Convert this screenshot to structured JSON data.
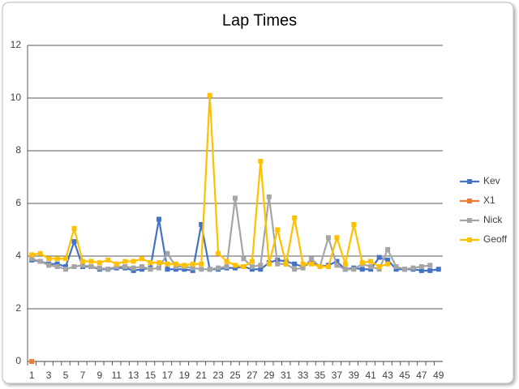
{
  "chart_data": {
    "type": "line",
    "title": "Lap Times",
    "categories": [
      "1",
      null,
      "3",
      null,
      "5",
      null,
      "7",
      null,
      "9",
      null,
      "11",
      null,
      "13",
      null,
      "15",
      null,
      "17",
      null,
      "19",
      null,
      "21",
      null,
      "23",
      null,
      "25",
      null,
      "27",
      null,
      "29",
      null,
      "31",
      null,
      "33",
      null,
      "35",
      null,
      "37",
      null,
      "39",
      null,
      "41",
      null,
      "43",
      null,
      "45",
      null,
      "47",
      null,
      "49"
    ],
    "series": [
      {
        "name": "Kev",
        "color": "#4472c4",
        "values": [
          3.85,
          3.8,
          3.7,
          3.7,
          3.6,
          4.55,
          3.6,
          3.6,
          3.5,
          3.5,
          3.55,
          3.55,
          3.45,
          3.5,
          3.55,
          5.4,
          3.5,
          3.5,
          3.5,
          3.45,
          5.2,
          3.5,
          3.5,
          3.55,
          3.55,
          3.6,
          3.5,
          3.5,
          3.75,
          3.85,
          3.8,
          3.7,
          3.6,
          3.75,
          3.6,
          3.65,
          3.8,
          3.5,
          3.55,
          3.5,
          3.5,
          3.95,
          3.85,
          3.5,
          3.5,
          3.5,
          3.45,
          3.45,
          3.5
        ]
      },
      {
        "name": "X1",
        "color": "#ed7d31",
        "values": [
          0,
          null,
          null,
          null,
          null,
          null,
          null,
          null,
          null,
          null,
          null,
          null,
          null,
          null,
          null,
          null,
          null,
          null,
          null,
          null,
          null,
          null,
          null,
          null,
          null,
          null,
          null,
          null,
          null,
          null,
          null,
          null,
          null,
          null,
          null,
          null,
          null,
          null,
          null,
          null,
          null,
          null,
          null,
          null,
          null,
          null,
          null,
          null,
          null
        ]
      },
      {
        "name": "Nick",
        "color": "#a5a5a5",
        "values": [
          3.9,
          3.8,
          3.65,
          3.6,
          3.5,
          3.6,
          3.65,
          3.6,
          3.55,
          3.5,
          3.6,
          3.6,
          3.55,
          3.6,
          3.5,
          3.55,
          4.1,
          3.6,
          3.6,
          3.55,
          3.5,
          3.5,
          3.55,
          3.6,
          6.2,
          3.9,
          3.6,
          3.65,
          6.25,
          3.7,
          3.7,
          3.5,
          3.55,
          3.9,
          3.6,
          4.7,
          3.65,
          3.5,
          3.5,
          3.7,
          3.6,
          3.5,
          4.25,
          3.6,
          3.5,
          3.55,
          3.6,
          3.65,
          null
        ]
      },
      {
        "name": "Geoff",
        "color": "#ffc000",
        "values": [
          4.05,
          4.1,
          3.9,
          3.9,
          3.9,
          5.05,
          3.8,
          3.8,
          3.75,
          3.85,
          3.7,
          3.8,
          3.8,
          3.9,
          3.75,
          3.75,
          3.7,
          3.7,
          3.65,
          3.7,
          3.7,
          10.1,
          4.1,
          3.8,
          3.65,
          3.6,
          3.8,
          7.6,
          3.7,
          5.0,
          3.7,
          5.45,
          3.7,
          3.7,
          3.6,
          3.6,
          4.7,
          3.7,
          5.2,
          3.75,
          3.8,
          3.6,
          3.7,
          null,
          null,
          null,
          null,
          null,
          null
        ]
      }
    ],
    "ylim": [
      0,
      12
    ],
    "yticks": [
      0,
      2,
      4,
      6,
      8,
      10,
      12
    ],
    "grid": true,
    "legend": "right"
  }
}
